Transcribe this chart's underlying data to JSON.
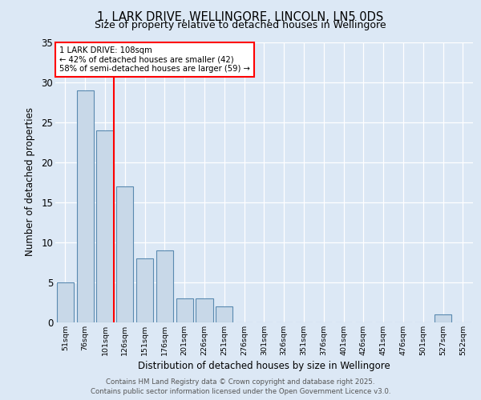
{
  "title1": "1, LARK DRIVE, WELLINGORE, LINCOLN, LN5 0DS",
  "title2": "Size of property relative to detached houses in Wellingore",
  "xlabel": "Distribution of detached houses by size in Wellingore",
  "ylabel": "Number of detached properties",
  "categories": [
    "51sqm",
    "76sqm",
    "101sqm",
    "126sqm",
    "151sqm",
    "176sqm",
    "201sqm",
    "226sqm",
    "251sqm",
    "276sqm",
    "301sqm",
    "326sqm",
    "351sqm",
    "376sqm",
    "401sqm",
    "426sqm",
    "451sqm",
    "476sqm",
    "501sqm",
    "527sqm",
    "552sqm"
  ],
  "values": [
    5,
    29,
    24,
    17,
    8,
    9,
    3,
    3,
    2,
    0,
    0,
    0,
    0,
    0,
    0,
    0,
    0,
    0,
    0,
    1,
    0
  ],
  "bar_color": "#c8d8e8",
  "bar_edge_color": "#5a8ab0",
  "annotation_line1": "1 LARK DRIVE: 108sqm",
  "annotation_line2": "← 42% of detached houses are smaller (42)",
  "annotation_line3": "58% of semi-detached houses are larger (59) →",
  "ylim": [
    0,
    35
  ],
  "yticks": [
    0,
    5,
    10,
    15,
    20,
    25,
    30,
    35
  ],
  "footer1": "Contains HM Land Registry data © Crown copyright and database right 2025.",
  "footer2": "Contains public sector information licensed under the Open Government Licence v3.0.",
  "bg_color": "#dce8f5",
  "plot_bg_color": "#dce8f5",
  "title1_fontsize": 10.5,
  "title2_fontsize": 9.0,
  "red_line_index": 2.45
}
